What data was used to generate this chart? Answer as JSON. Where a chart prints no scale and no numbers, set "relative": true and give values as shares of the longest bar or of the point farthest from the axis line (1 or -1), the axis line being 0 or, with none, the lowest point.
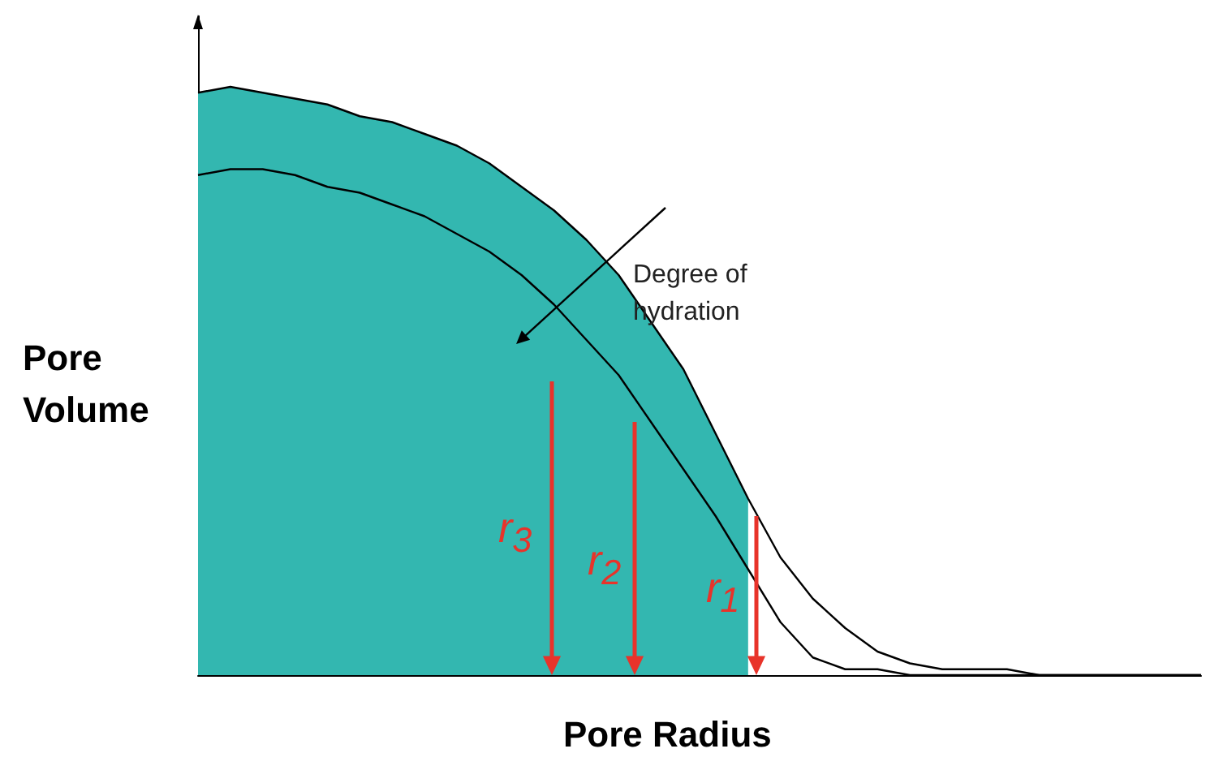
{
  "chart_data": {
    "type": "line",
    "relative": true,
    "xlabel": "Pore Radius",
    "ylabel": "Pore Volume",
    "grid": false,
    "marker": "none",
    "line_style": "solid",
    "categories": [
      null,
      null,
      null,
      null,
      null,
      null,
      null,
      null,
      null,
      null,
      null,
      null,
      null,
      null,
      null,
      null,
      null,
      null,
      null,
      null,
      null,
      null,
      null,
      null,
      null,
      null,
      null,
      null,
      null,
      null,
      null,
      null
    ],
    "series": [
      {
        "type": "area",
        "color": "#33b7b0",
        "values": [
          0.99,
          1,
          0.99,
          0.98,
          0.97,
          0.95,
          0.94,
          0.92,
          0.9,
          0.87,
          0.83,
          0.79,
          0.74,
          0.68,
          0.6,
          0.52,
          0.41,
          0.3,
          null,
          null,
          null,
          null,
          null,
          null,
          null,
          null,
          null,
          null,
          null,
          null,
          null,
          null
        ]
      },
      {
        "color": "#000000",
        "values": [
          0.99,
          1,
          0.99,
          0.98,
          0.97,
          0.95,
          0.94,
          0.92,
          0.9,
          0.87,
          0.83,
          0.79,
          0.74,
          0.68,
          0.6,
          0.52,
          0.41,
          0.3,
          0.2,
          0.13,
          0.08,
          0.04,
          0.02,
          0.01,
          0.01,
          0.01,
          0,
          0,
          0,
          0,
          0,
          0
        ]
      },
      {
        "color": "#000000",
        "values": [
          0.85,
          0.86,
          0.86,
          0.85,
          0.83,
          0.82,
          0.8,
          0.78,
          0.75,
          0.72,
          0.68,
          0.63,
          0.57,
          0.51,
          0.43,
          0.35,
          0.27,
          0.18,
          0.09,
          0.03,
          0.01,
          0.01,
          0,
          0,
          0,
          0,
          0,
          0,
          0,
          0,
          0,
          0
        ]
      }
    ],
    "annotations": [
      "Degree of hydration",
      "r$_{3}$",
      "r$_{2}$",
      "r$_{1}$"
    ]
  }
}
